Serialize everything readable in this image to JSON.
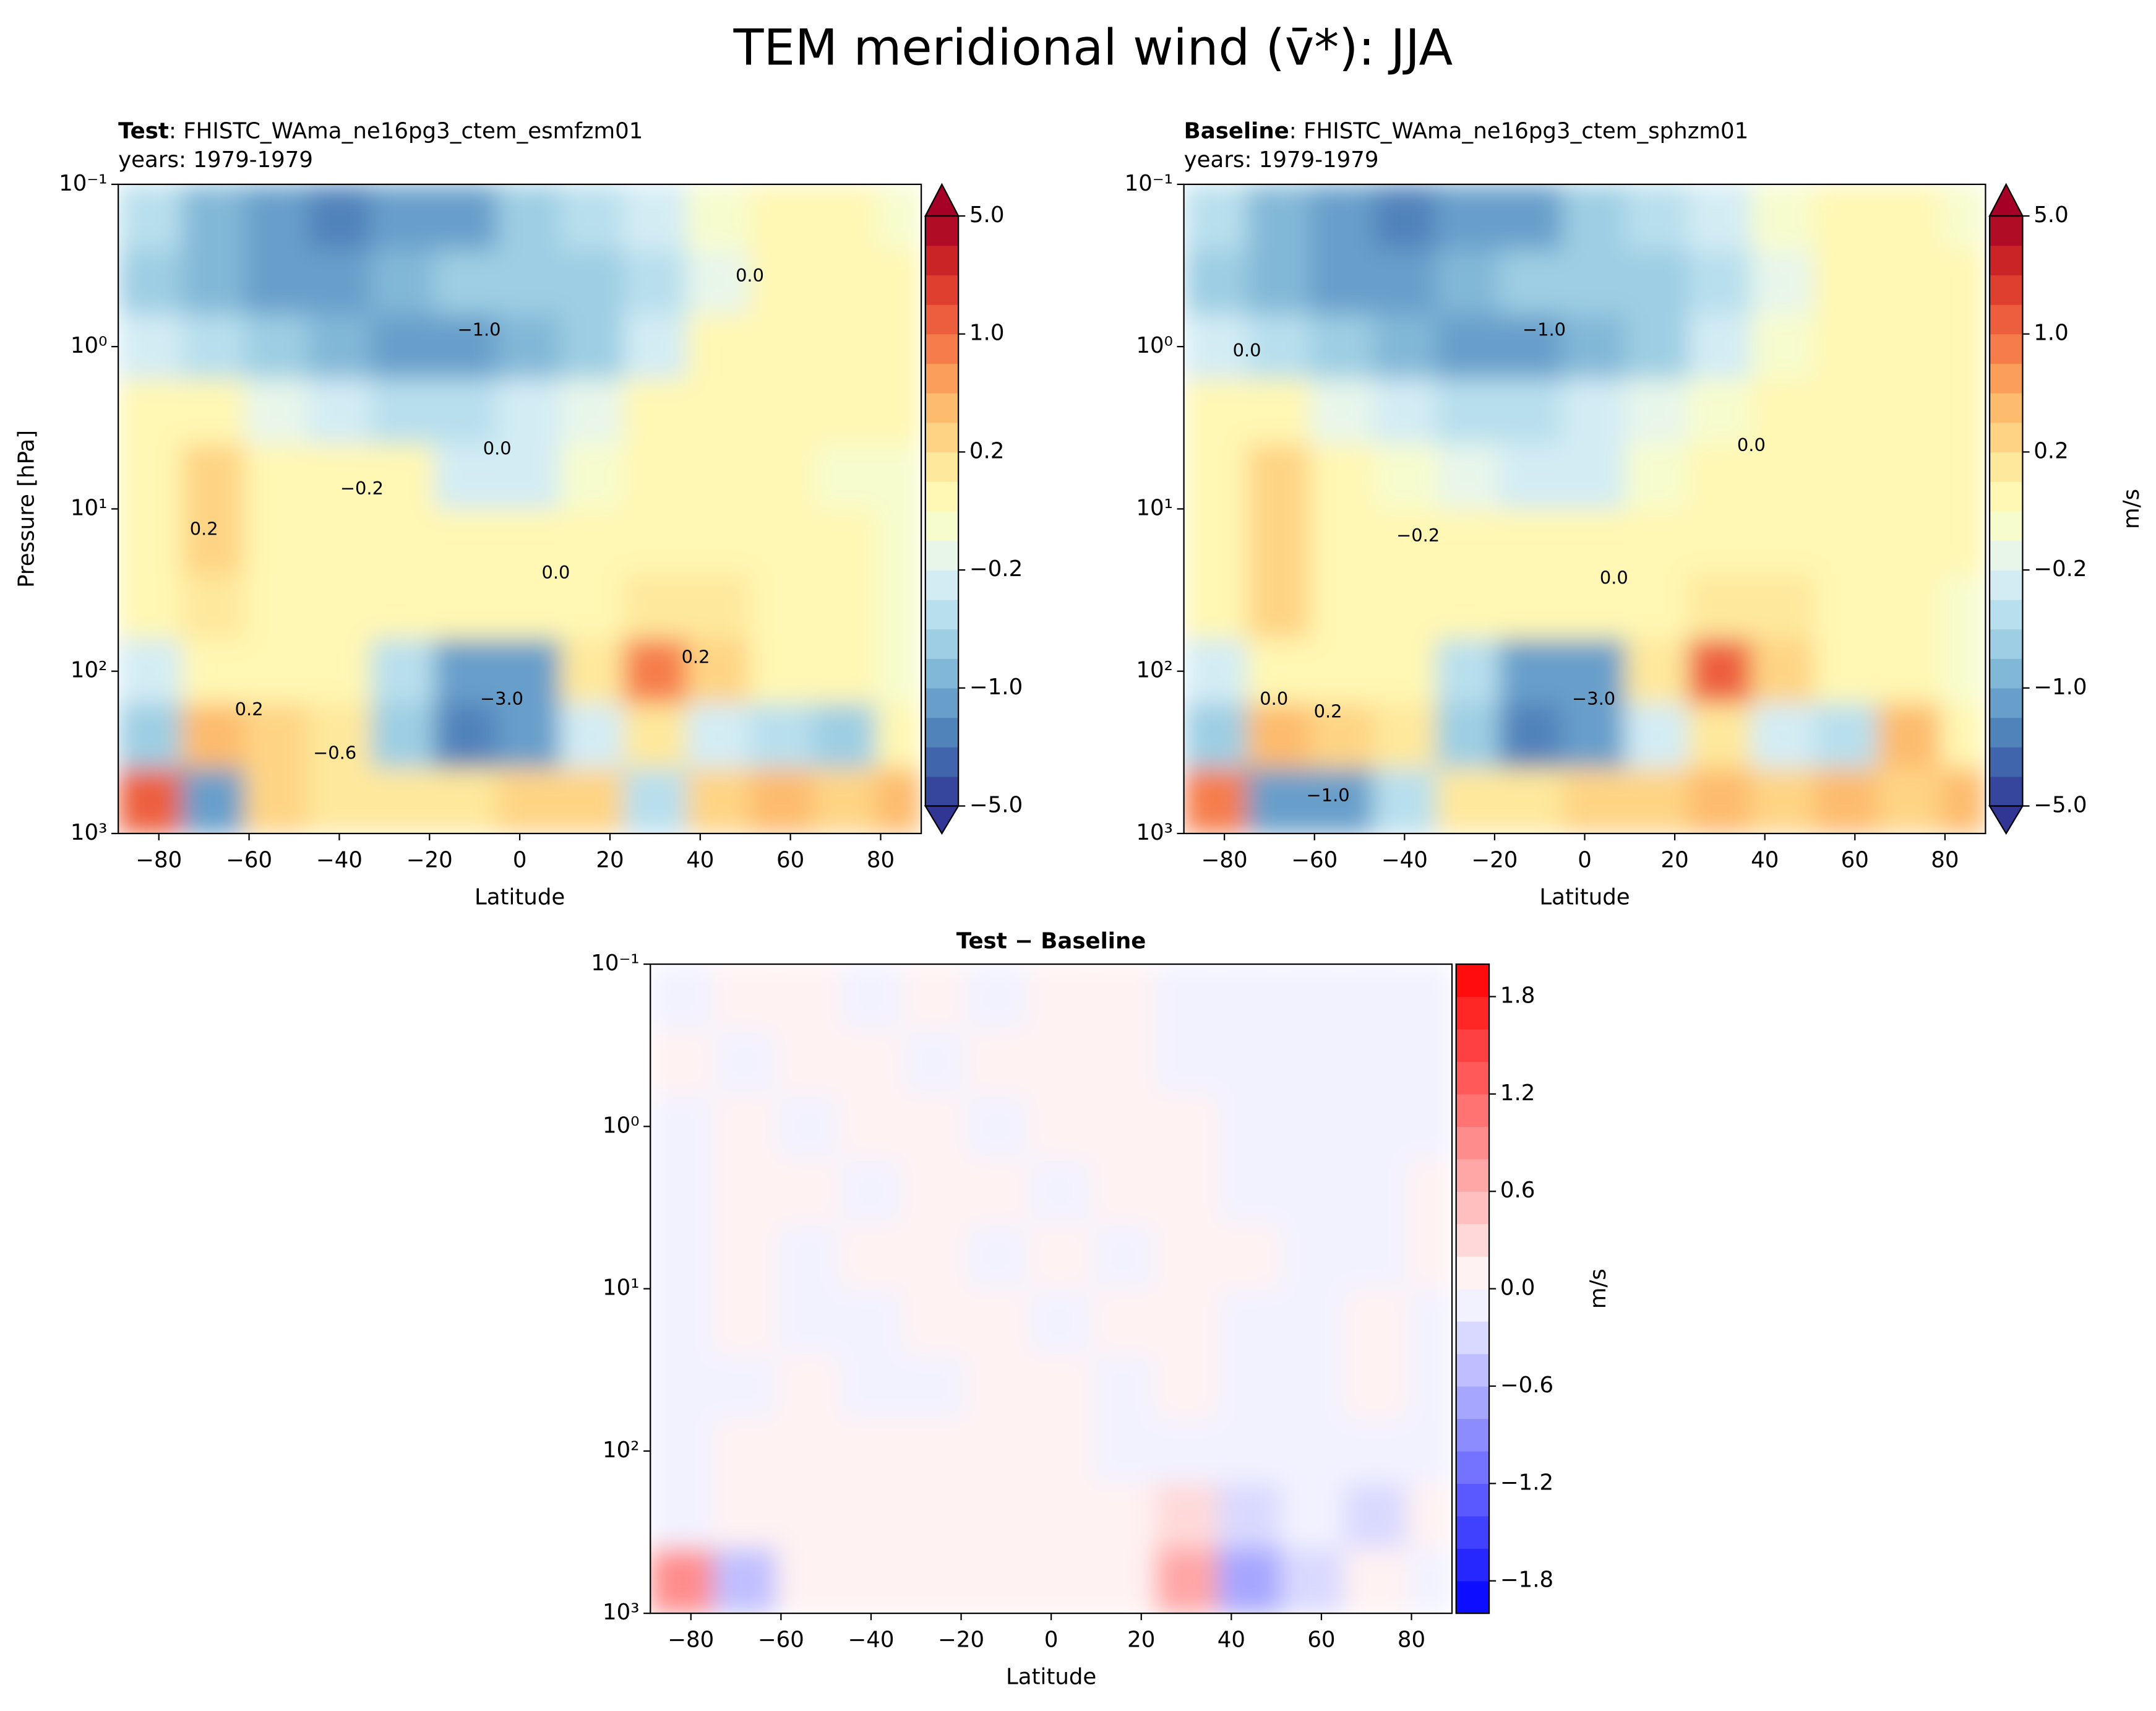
{
  "suptitle": "TEM meridional wind (v̄*): JJA",
  "chart_data": [
    {
      "type": "contour",
      "title_parts": [
        "Test",
        ": FHISTC_WAma_ne16pg3_ctem_esmfzm01"
      ],
      "subtitle": "years: 1979-1979",
      "xlabel": "Latitude",
      "ylabel": "Pressure [hPa]",
      "log_y": true,
      "xlim": [
        -89,
        89
      ],
      "ylim": [
        1000,
        0.1
      ],
      "xticks": [
        {
          "value": -80,
          "label": "−80"
        },
        {
          "value": -60,
          "label": "−60"
        },
        {
          "value": -40,
          "label": "−40"
        },
        {
          "value": -20,
          "label": "−20"
        },
        0,
        20,
        40,
        60,
        80
      ],
      "yticks": [
        {
          "value": 0.1,
          "label": "10⁻¹"
        },
        {
          "value": 1,
          "label": "10⁰"
        },
        {
          "value": 10,
          "label": "10¹"
        },
        {
          "value": 100,
          "label": "10²"
        },
        {
          "value": 1000,
          "label": "10³"
        }
      ],
      "lat": [
        -82,
        -68,
        -54,
        -40,
        -26,
        -12,
        2,
        16,
        30,
        44,
        58,
        72,
        86
      ],
      "pressure": [
        0.16,
        0.4,
        1,
        2.5,
        6.3,
        16,
        40,
        100,
        250,
        630
      ],
      "z": [
        [
          -0.4,
          -0.8,
          -1.5,
          -2,
          -1.5,
          -1,
          -0.6,
          -0.4,
          -0.2,
          0,
          0.05,
          0.05,
          0
        ],
        [
          -0.6,
          -0.8,
          -1,
          -1,
          -0.8,
          -0.6,
          -0.6,
          -0.6,
          -0.4,
          -0.1,
          0.05,
          0.05,
          0.05
        ],
        [
          -0.2,
          -0.4,
          -0.6,
          -0.8,
          -1,
          -1,
          -0.8,
          -0.6,
          -0.2,
          0.05,
          0.05,
          0.05,
          0.05
        ],
        [
          0.1,
          0.1,
          -0.1,
          -0.2,
          -0.4,
          -0.4,
          -0.2,
          -0.1,
          0.05,
          0.05,
          0.05,
          0.05,
          0.05
        ],
        [
          0.05,
          0.3,
          0.05,
          0.05,
          0.05,
          -0.2,
          -0.2,
          -0.05,
          0.05,
          0.05,
          0.05,
          -0.05,
          0
        ],
        [
          0.05,
          0.3,
          0.1,
          0.05,
          0.05,
          0.05,
          0.05,
          0.05,
          0.05,
          0.05,
          0.05,
          0.05,
          -0.05
        ],
        [
          0.05,
          0.2,
          0.1,
          0.05,
          0.05,
          0.05,
          0.1,
          0.1,
          0.2,
          0.2,
          0.05,
          0.05,
          0
        ],
        [
          -0.2,
          0.1,
          0.05,
          0.05,
          -0.4,
          -1,
          -1,
          0.2,
          1,
          0.4,
          0.05,
          0.05,
          0
        ],
        [
          -0.6,
          0.6,
          0.4,
          0.2,
          -0.6,
          -2,
          -1,
          -0.2,
          0.2,
          -0.2,
          -0.4,
          -0.6,
          0.05
        ],
        [
          2,
          -1,
          0.4,
          0.2,
          0.2,
          0.2,
          0.3,
          0.4,
          -0.4,
          0.4,
          0.6,
          0.4,
          0.6
        ]
      ],
      "levels": [
        -5,
        -4,
        -3,
        -2,
        -1,
        -0.8,
        -0.6,
        -0.4,
        -0.2,
        -0.1,
        0,
        0.1,
        0.2,
        0.4,
        0.6,
        0.8,
        1,
        2,
        3,
        4,
        5
      ],
      "colors": [
        "#36469d",
        "#4065ac",
        "#5183bb",
        "#689fca",
        "#82b8d7",
        "#9dcee3",
        "#b8dfed",
        "#d3ecf4",
        "#e8f6ea",
        "#f7fccd",
        "#fff7b3",
        "#fee89b",
        "#fed484",
        "#fdbb6d",
        "#fb9e5a",
        "#f67d4b",
        "#ed5e3c",
        "#de3f2e",
        "#ca2427",
        "#b10c26"
      ],
      "under_color": "#313695",
      "over_color": "#a50026",
      "cbar_ticks": [
        {
          "value": 5,
          "label": "5.0"
        },
        {
          "value": 1,
          "label": "1.0"
        },
        {
          "value": 0.2,
          "label": "0.2"
        },
        {
          "value": -0.2,
          "label": "−0.2"
        },
        {
          "value": -1,
          "label": "−1.0"
        },
        {
          "value": -5,
          "label": "−5.0"
        }
      ],
      "annotations": [
        {
          "text": "−1.0",
          "x": -9,
          "y": 0.8
        },
        {
          "text": "0.0",
          "x": 51,
          "y": 0.37
        },
        {
          "text": "0.0",
          "x": -5,
          "y": 4.3
        },
        {
          "text": "−0.2",
          "x": -35,
          "y": 7.6
        },
        {
          "text": "0.2",
          "x": -70,
          "y": 13.5
        },
        {
          "text": "0.0",
          "x": 8,
          "y": 25
        },
        {
          "text": "0.2",
          "x": 39,
          "y": 83
        },
        {
          "text": "−3.0",
          "x": -4,
          "y": 150
        },
        {
          "text": "0.2",
          "x": -60,
          "y": 174
        },
        {
          "text": "−0.6",
          "x": -41,
          "y": 324
        }
      ]
    },
    {
      "type": "contour",
      "title_parts": [
        "Baseline",
        ": FHISTC_WAma_ne16pg3_ctem_sphzm01"
      ],
      "subtitle": "years: 1979-1979",
      "xlabel": "Latitude",
      "colorbar_label": "m/s",
      "log_y": true,
      "xlim": [
        -89,
        89
      ],
      "ylim": [
        1000,
        0.1
      ],
      "xticks": [
        {
          "value": -80,
          "label": "−80"
        },
        {
          "value": -60,
          "label": "−60"
        },
        {
          "value": -40,
          "label": "−40"
        },
        {
          "value": -20,
          "label": "−20"
        },
        0,
        20,
        40,
        60,
        80
      ],
      "yticks": [
        {
          "value": 0.1,
          "label": "10⁻¹"
        },
        {
          "value": 1,
          "label": "10⁰"
        },
        {
          "value": 10,
          "label": "10¹"
        },
        {
          "value": 100,
          "label": "10²"
        },
        {
          "value": 1000,
          "label": "10³"
        }
      ],
      "lat": [
        -82,
        -68,
        -54,
        -40,
        -26,
        -12,
        2,
        16,
        30,
        44,
        58,
        72,
        86
      ],
      "pressure": [
        0.16,
        0.4,
        1,
        2.5,
        6.3,
        16,
        40,
        100,
        250,
        630
      ],
      "z": [
        [
          -0.4,
          -0.8,
          -1.5,
          -2,
          -1.5,
          -1,
          -0.6,
          -0.4,
          -0.2,
          0,
          0.05,
          0.05,
          0
        ],
        [
          -0.6,
          -0.8,
          -1,
          -1,
          -0.8,
          -0.6,
          -0.6,
          -0.6,
          -0.4,
          -0.1,
          0.05,
          0.05,
          0.05
        ],
        [
          -0.2,
          -0.4,
          -0.6,
          -0.8,
          -1,
          -1,
          -0.8,
          -0.6,
          -0.3,
          -0.05,
          0.05,
          0.05,
          0.05
        ],
        [
          0.05,
          0.1,
          -0.1,
          -0.2,
          -0.4,
          -0.4,
          -0.2,
          -0.1,
          -0.05,
          0.05,
          0.05,
          0.05,
          0.05
        ],
        [
          0.05,
          0.3,
          0.05,
          -0.05,
          -0.1,
          -0.2,
          -0.2,
          -0.05,
          0.05,
          0.05,
          0.05,
          0.05,
          0.05
        ],
        [
          0.05,
          0.3,
          0.1,
          0.05,
          0.05,
          0.05,
          0.05,
          0.05,
          0.05,
          0.05,
          0.05,
          0.05,
          0.05
        ],
        [
          0.05,
          0.3,
          0.1,
          0.05,
          0.05,
          0.05,
          0.05,
          0.1,
          0.2,
          0.2,
          0.05,
          0.05,
          0
        ],
        [
          -0.2,
          0.1,
          0.05,
          0.05,
          -0.4,
          -1.5,
          -1,
          0.2,
          1.5,
          0.4,
          0.05,
          0.05,
          0
        ],
        [
          -0.6,
          0.6,
          0.4,
          0.2,
          -0.6,
          -2,
          -1,
          -0.2,
          0.2,
          -0.2,
          -0.4,
          0.6,
          0.05
        ],
        [
          1,
          -1.5,
          -1,
          -0.4,
          0.2,
          0.2,
          0.3,
          0.4,
          0.6,
          0.4,
          0.6,
          0.4,
          0.6
        ]
      ],
      "levels": [
        -5,
        -4,
        -3,
        -2,
        -1,
        -0.8,
        -0.6,
        -0.4,
        -0.2,
        -0.1,
        0,
        0.1,
        0.2,
        0.4,
        0.6,
        0.8,
        1,
        2,
        3,
        4,
        5
      ],
      "colors": [
        "#36469d",
        "#4065ac",
        "#5183bb",
        "#689fca",
        "#82b8d7",
        "#9dcee3",
        "#b8dfed",
        "#d3ecf4",
        "#e8f6ea",
        "#f7fccd",
        "#fff7b3",
        "#fee89b",
        "#fed484",
        "#fdbb6d",
        "#fb9e5a",
        "#f67d4b",
        "#ed5e3c",
        "#de3f2e",
        "#ca2427",
        "#b10c26"
      ],
      "under_color": "#313695",
      "over_color": "#a50026",
      "cbar_ticks": [
        {
          "value": 5,
          "label": "5.0"
        },
        {
          "value": 1,
          "label": "1.0"
        },
        {
          "value": 0.2,
          "label": "0.2"
        },
        {
          "value": -0.2,
          "label": "−0.2"
        },
        {
          "value": -1,
          "label": "−1.0"
        },
        {
          "value": -5,
          "label": "−5.0"
        }
      ],
      "annotations": [
        {
          "text": "−1.0",
          "x": -9,
          "y": 0.8
        },
        {
          "text": "0.0",
          "x": 37,
          "y": 4.1
        },
        {
          "text": "−0.2",
          "x": -37,
          "y": 14.8
        },
        {
          "text": "0.0",
          "x": 6.5,
          "y": 27
        },
        {
          "text": "0.0",
          "x": -75,
          "y": 1.07
        },
        {
          "text": "−3.0",
          "x": 2,
          "y": 150
        },
        {
          "text": "−1.0",
          "x": -57,
          "y": 590
        },
        {
          "text": "0.2",
          "x": -57,
          "y": 180
        },
        {
          "text": "0.0",
          "x": -69,
          "y": 150
        }
      ]
    },
    {
      "type": "contour",
      "title_parts": [
        "Test − Baseline"
      ],
      "xlabel": "Latitude",
      "colorbar_label": "m/s",
      "log_y": true,
      "xlim": [
        -89,
        89
      ],
      "ylim": [
        1000,
        0.1
      ],
      "xticks": [
        {
          "value": -80,
          "label": "−80"
        },
        {
          "value": -60,
          "label": "−60"
        },
        {
          "value": -40,
          "label": "−40"
        },
        {
          "value": -20,
          "label": "−20"
        },
        0,
        20,
        40,
        60,
        80
      ],
      "yticks": [
        {
          "value": 0.1,
          "label": "10⁻¹"
        },
        {
          "value": 1,
          "label": "10⁰"
        },
        {
          "value": 10,
          "label": "10¹"
        },
        {
          "value": 100,
          "label": "10²"
        },
        {
          "value": 1000,
          "label": "10³"
        }
      ],
      "lat": [
        -82,
        -68,
        -54,
        -40,
        -26,
        -12,
        2,
        16,
        30,
        44,
        58,
        72,
        86
      ],
      "pressure": [
        0.16,
        0.4,
        1,
        2.5,
        6.3,
        16,
        40,
        100,
        250,
        630
      ],
      "z": [
        [
          -0.05,
          0.05,
          0.05,
          -0.05,
          0.05,
          -0.05,
          0.05,
          0.05,
          -0.05,
          -0.05,
          -0.05,
          -0.05,
          -0.05
        ],
        [
          0.05,
          -0.05,
          0.05,
          0.05,
          -0.05,
          0.05,
          0.05,
          0.05,
          -0.05,
          -0.05,
          -0.05,
          -0.05,
          -0.05
        ],
        [
          -0.05,
          0.05,
          -0.05,
          0.05,
          0.05,
          -0.05,
          0.05,
          0.05,
          0.05,
          -0.05,
          -0.05,
          -0.05,
          -0.05
        ],
        [
          -0.05,
          0.05,
          0.05,
          -0.05,
          0.05,
          0.05,
          -0.05,
          0.05,
          0.05,
          -0.05,
          -0.05,
          -0.05,
          0.05
        ],
        [
          -0.05,
          0.05,
          -0.05,
          0.05,
          0.05,
          -0.05,
          0.05,
          -0.05,
          0.05,
          0.05,
          -0.05,
          -0.05,
          0.05
        ],
        [
          -0.05,
          0.05,
          -0.05,
          -0.05,
          0.05,
          0.05,
          -0.05,
          0.05,
          0.05,
          -0.05,
          -0.05,
          0.05,
          -0.05
        ],
        [
          -0.05,
          -0.05,
          0.05,
          -0.05,
          -0.05,
          0.05,
          0.05,
          -0.05,
          0.05,
          -0.05,
          -0.05,
          0.05,
          -0.05
        ],
        [
          -0.05,
          0.15,
          0.05,
          0.05,
          0.05,
          0.05,
          0.05,
          -0.05,
          -0.05,
          -0.05,
          -0.05,
          -0.05,
          -0.05
        ],
        [
          -0.1,
          0.05,
          0.05,
          0.05,
          0.05,
          0.05,
          0.05,
          0.05,
          0.3,
          -0.2,
          -0.05,
          -0.2,
          0.05
        ],
        [
          1,
          -0.5,
          0.05,
          0.2,
          0.05,
          0.05,
          0.05,
          0.05,
          0.8,
          -0.6,
          -0.2,
          0.05,
          -0.05
        ]
      ],
      "levels": [
        -2,
        -1.8,
        -1.6,
        -1.4,
        -1.2,
        -1,
        -0.8,
        -0.6,
        -0.4,
        -0.2,
        0,
        0.2,
        0.4,
        0.6,
        0.8,
        1,
        1.2,
        1.4,
        1.6,
        1.8,
        2
      ],
      "colors": [
        "#0d0dff",
        "#2626ff",
        "#4040ff",
        "#5959ff",
        "#7373ff",
        "#8c8cff",
        "#a6a6ff",
        "#bfbfff",
        "#d9d9ff",
        "#f2f2ff",
        "#fff2f2",
        "#ffd9d9",
        "#ffbfbf",
        "#ffa6a6",
        "#ff8c8c",
        "#ff7373",
        "#ff5959",
        "#ff4040",
        "#ff2626",
        "#ff0d0d"
      ],
      "cbar_ticks": [
        1.8,
        1.2,
        0.6,
        {
          "value": 0,
          "label": "0.0"
        },
        {
          "value": -0.6,
          "label": "−0.6"
        },
        {
          "value": -1.2,
          "label": "−1.2"
        },
        {
          "value": -1.8,
          "label": "−1.8"
        }
      ]
    }
  ]
}
